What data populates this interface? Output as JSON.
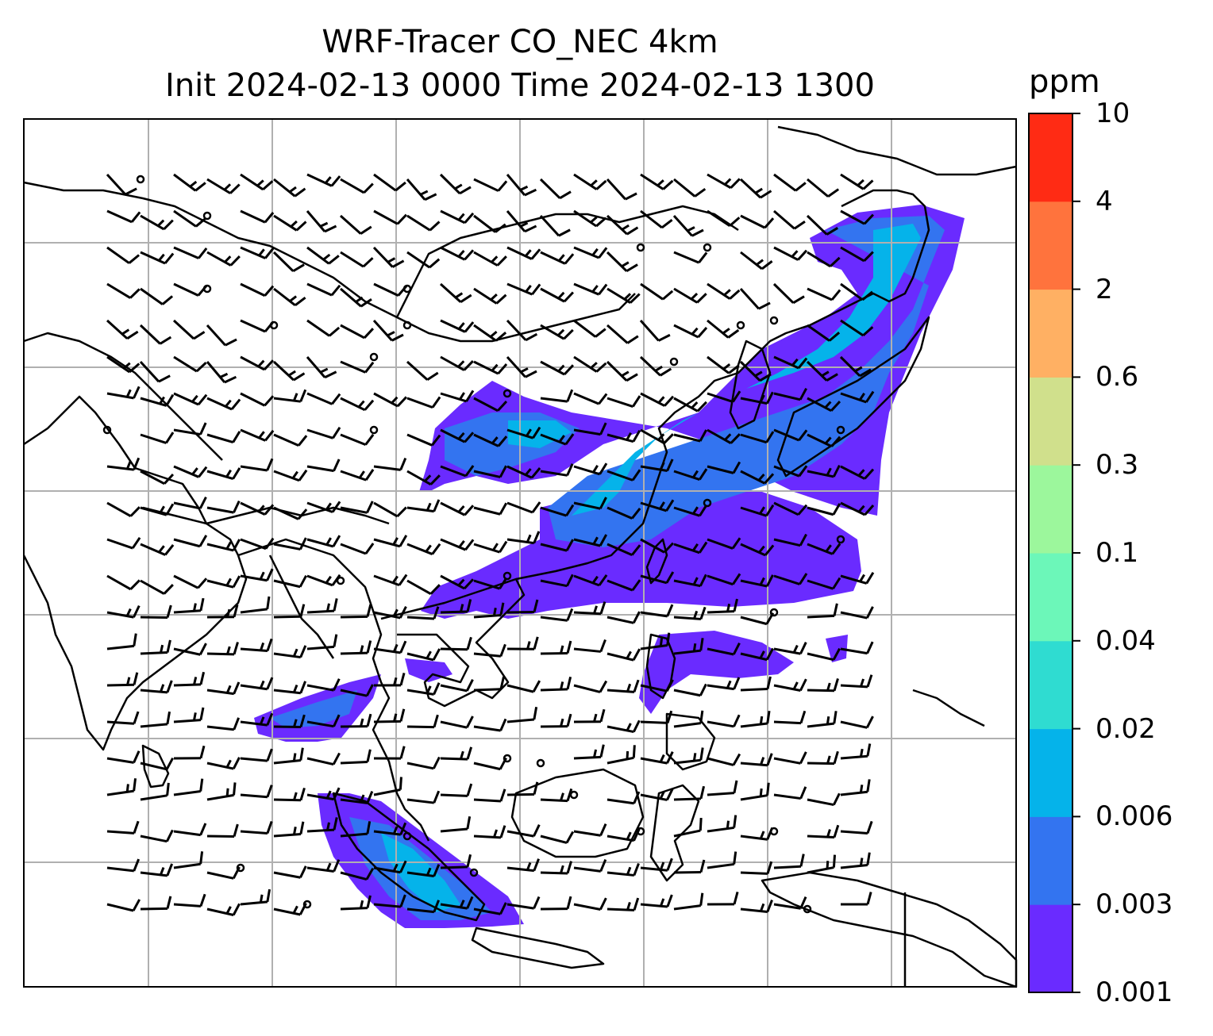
{
  "title": {
    "line1": "WRF-Tracer CO_NEC 4km",
    "line2": "Init 2024-02-13 0000 Time 2024-02-13 1300"
  },
  "colorbar": {
    "unit": "ppm",
    "levels": [
      "0.001",
      "0.003",
      "0.006",
      "0.02",
      "0.04",
      "0.1",
      "0.3",
      "0.6",
      "2",
      "4",
      "10"
    ],
    "colors": [
      "#6a2bff",
      "#3374f0",
      "#05b3ea",
      "#2fdcd1",
      "#6cf7b9",
      "#9cf79c",
      "#d0e08c",
      "#ffb063",
      "#ff733d",
      "#ff2b14"
    ]
  },
  "map": {
    "field_colors": {
      "low": "#6a2bff",
      "mid": "#3374f0",
      "high": "#05b3ea",
      "higher": "#2fdcd1"
    },
    "gridline_color": "#b0b0b0",
    "coastline_color": "#000000",
    "wind_barb_color": "#000000"
  }
}
